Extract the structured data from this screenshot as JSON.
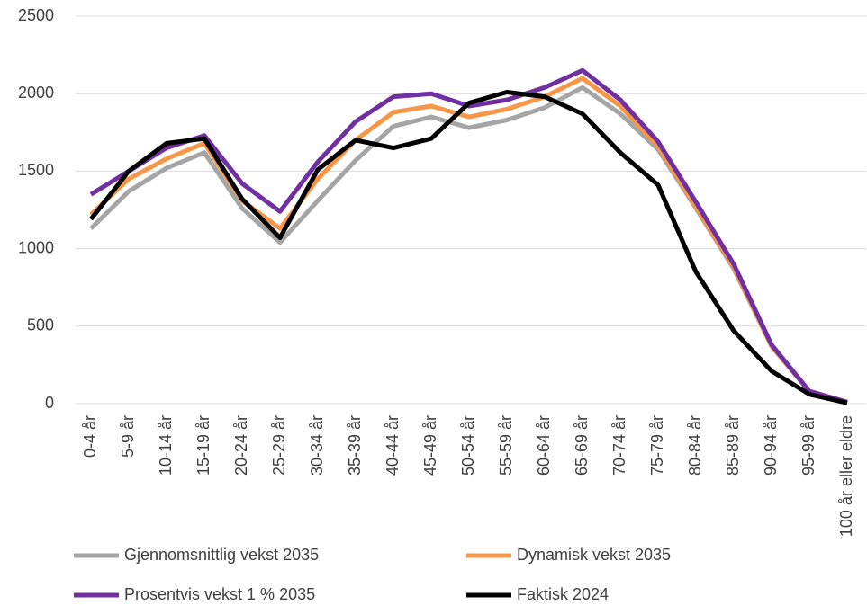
{
  "chart_data": {
    "type": "line",
    "categories": [
      "0-4 år",
      "5-9 år",
      "10-14 år",
      "15-19 år",
      "20-24 år",
      "25-29 år",
      "30-34 år",
      "35-39 år",
      "40-44 år",
      "45-49 år",
      "50-54 år",
      "55-59 år",
      "60-64 år",
      "65-69 år",
      "70-74 år",
      "75-79 år",
      "80-84 år",
      "85-89 år",
      "90-94 år",
      "95-99 år",
      "100 år eller eldre"
    ],
    "series": [
      {
        "name": "Gjennomsnittlig vekst 2035",
        "color": "#a5a5a5",
        "values": [
          1130,
          1370,
          1520,
          1620,
          1260,
          1040,
          1310,
          1570,
          1790,
          1850,
          1780,
          1830,
          1910,
          2040,
          1870,
          1640,
          1260,
          870,
          370,
          80,
          10
        ]
      },
      {
        "name": "Dynamisk vekst 2035",
        "color": "#f79646",
        "values": [
          1220,
          1450,
          1580,
          1680,
          1310,
          1130,
          1450,
          1700,
          1880,
          1920,
          1850,
          1900,
          1980,
          2100,
          1920,
          1660,
          1270,
          880,
          370,
          80,
          10
        ]
      },
      {
        "name": "Prosentvis vekst 1 % 2035",
        "color": "#7030a0",
        "values": [
          1350,
          1500,
          1650,
          1730,
          1420,
          1240,
          1560,
          1820,
          1980,
          2000,
          1920,
          1960,
          2040,
          2150,
          1960,
          1690,
          1300,
          900,
          380,
          80,
          10
        ]
      },
      {
        "name": "Faktisk 2024",
        "color": "#000000",
        "values": [
          1190,
          1500,
          1680,
          1710,
          1320,
          1070,
          1510,
          1700,
          1650,
          1710,
          1940,
          2010,
          1980,
          1870,
          1620,
          1410,
          850,
          470,
          210,
          60,
          5
        ]
      }
    ],
    "ylim": [
      0,
      2500
    ],
    "yticks": [
      0,
      500,
      1000,
      1500,
      2000,
      2500
    ],
    "grid": true,
    "legend": "bottom"
  }
}
